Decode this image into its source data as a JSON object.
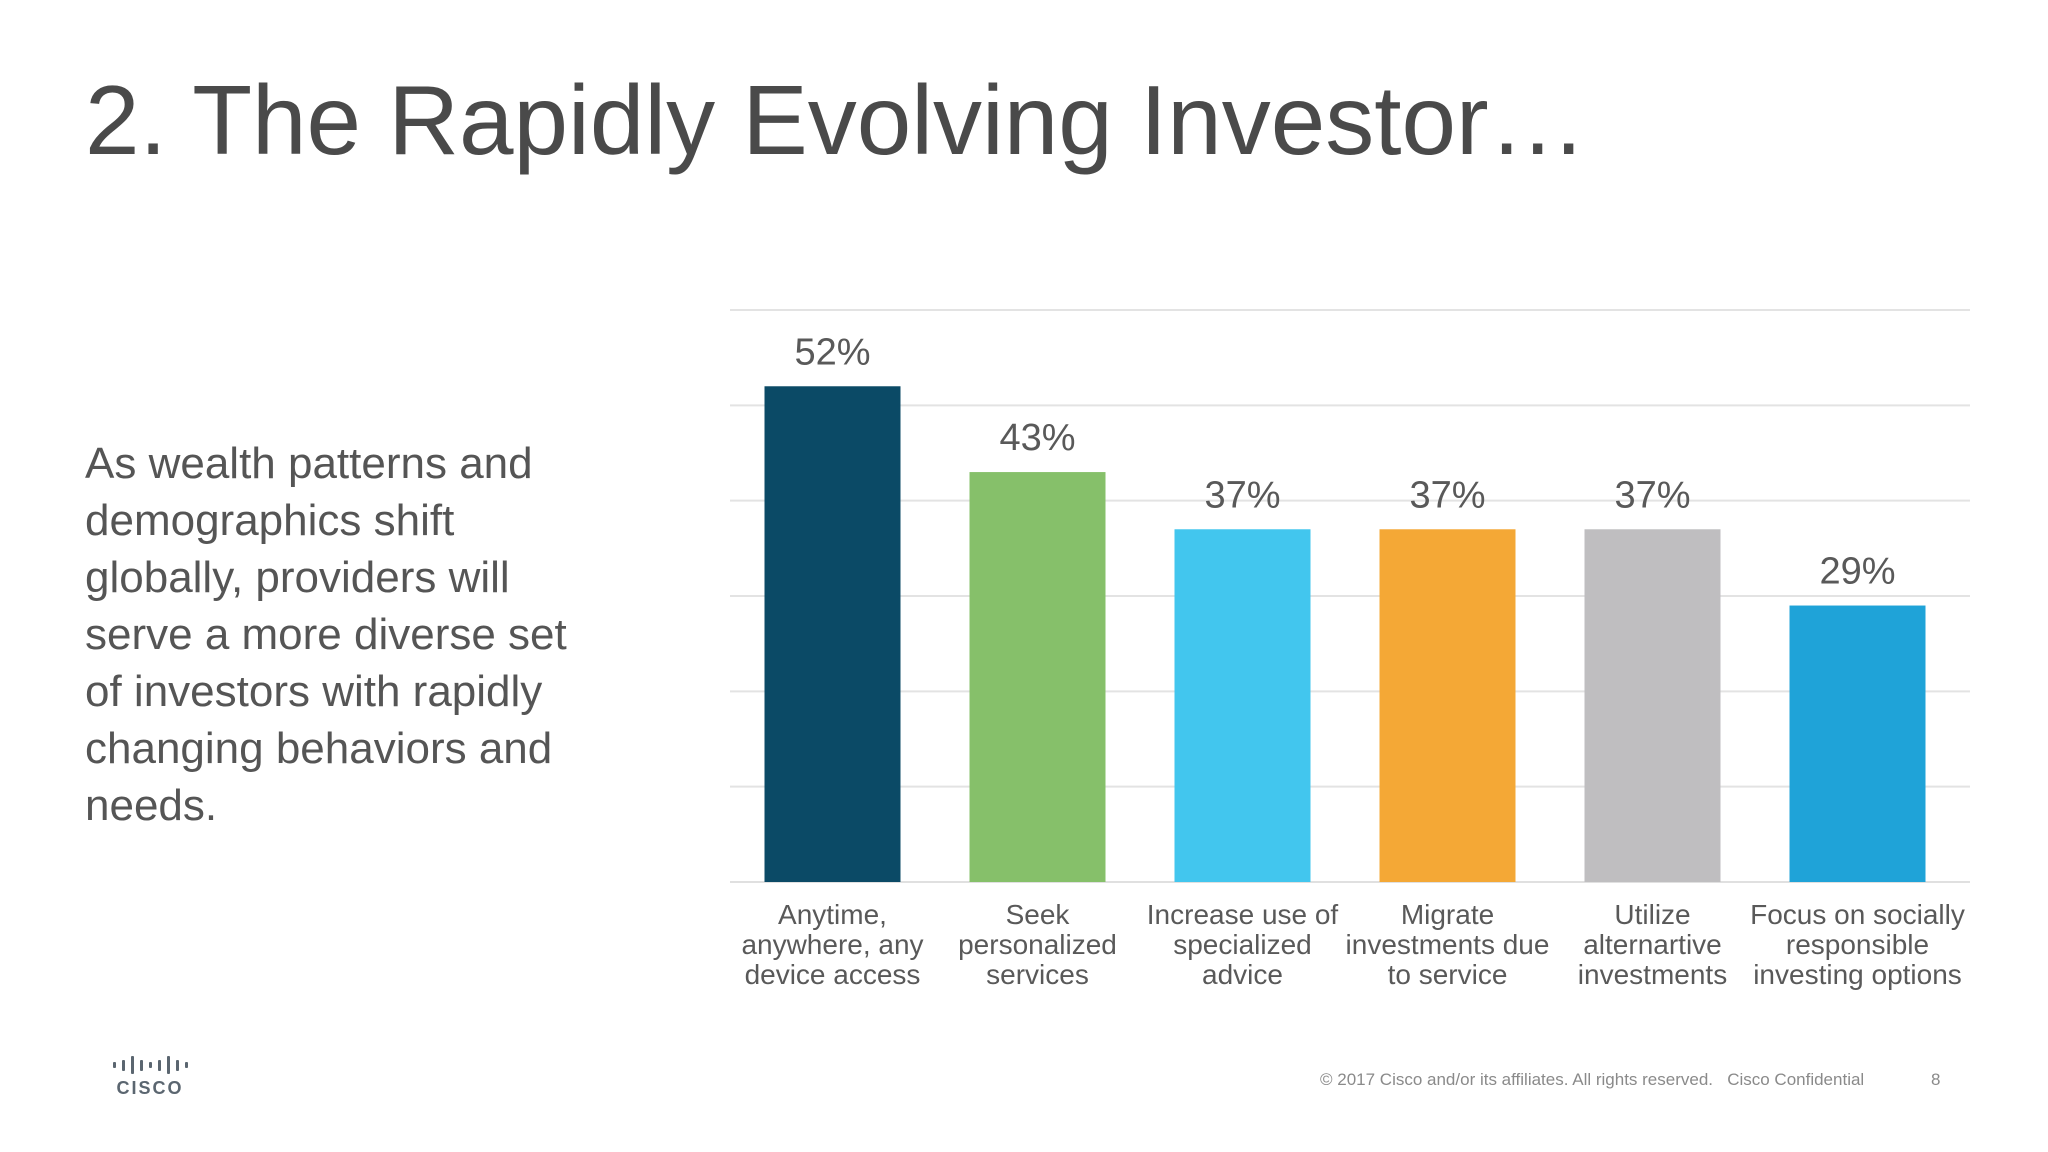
{
  "slide": {
    "title": "2. The Rapidly Evolving Investor…",
    "body": "As wealth patterns and demographics shift globally, providers will serve a more diverse set of investors with rapidly changing behaviors and needs."
  },
  "chart_data": {
    "type": "bar",
    "title": "",
    "xlabel": "",
    "ylabel": "",
    "ylim": [
      0,
      60
    ],
    "grid": true,
    "categories": [
      [
        "Anytime,",
        "anywhere, any",
        "device access"
      ],
      [
        "Seek",
        "personalized",
        "services"
      ],
      [
        "Increase use of",
        "specialized",
        "advice"
      ],
      [
        "Migrate",
        "investments due",
        "to service"
      ],
      [
        "Utilize",
        "alternartive",
        "investments"
      ],
      [
        "Focus on socially",
        "responsible",
        "investing options"
      ]
    ],
    "values": [
      52,
      43,
      37,
      37,
      37,
      29
    ],
    "value_labels": [
      "52%",
      "43%",
      "37%",
      "37%",
      "37%",
      "29%"
    ],
    "colors": [
      "#0b4a66",
      "#86c06a",
      "#42c6ee",
      "#f4a836",
      "#bfbec0",
      "#1fa3d8"
    ]
  },
  "footer": {
    "logo_text": "CISCO",
    "copyright": "© 2017  Cisco and/or its affiliates. All rights reserved.",
    "confidential": "Cisco Confidential",
    "page_number": "8"
  }
}
